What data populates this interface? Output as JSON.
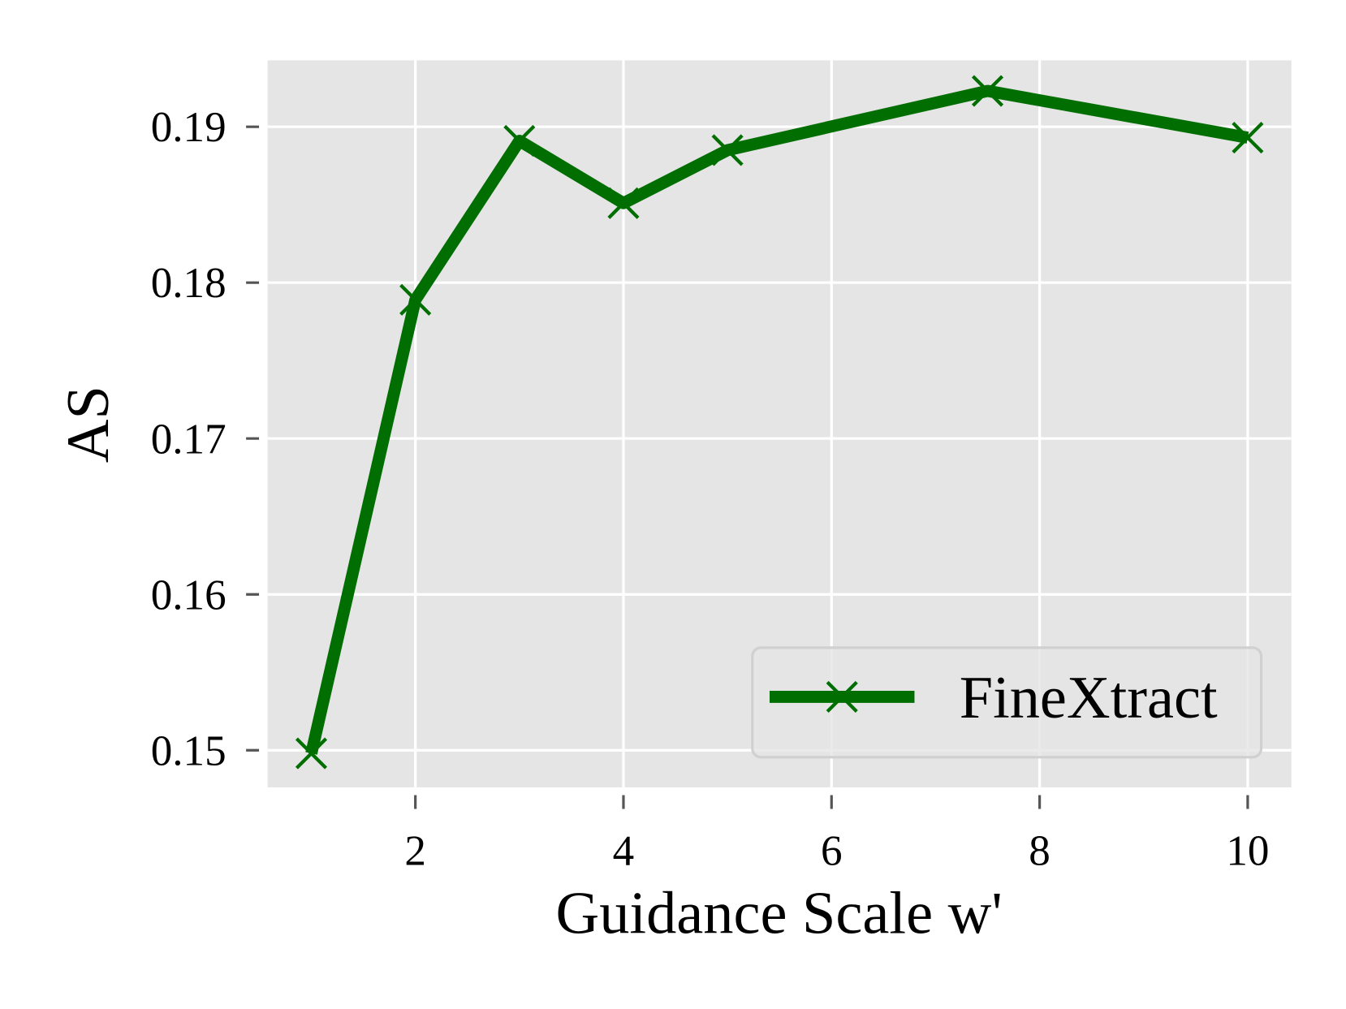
{
  "chart_data": {
    "type": "line",
    "x_label": "Guidance Scale w'",
    "y_label": "AS",
    "x": [
      1,
      2,
      3,
      4,
      5,
      7.5,
      10
    ],
    "series": [
      {
        "name": "FineXtract",
        "color": "#006e00",
        "values": [
          0.1498,
          0.1789,
          0.1891,
          0.1851,
          0.1885,
          0.1923,
          0.1893
        ]
      }
    ],
    "xlim": [
      0.58,
      10.42
    ],
    "xticks": [
      2,
      4,
      6,
      8,
      10
    ],
    "ylim": [
      0.14762,
      0.19426
    ],
    "yticks": [
      0.15,
      0.16,
      0.17,
      0.18,
      0.19
    ],
    "grid": true,
    "legend": "lower right"
  }
}
